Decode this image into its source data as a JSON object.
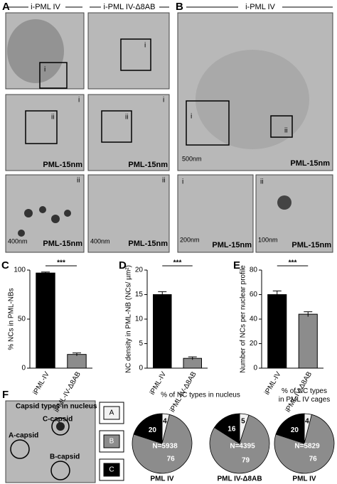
{
  "panel_a": {
    "letter": "A",
    "left_header": "i-PML IV",
    "right_header": "i-PML IV-Δ8AB",
    "inset_i": "i",
    "inset_ii": "ii",
    "stain": "PML-15nm",
    "scale": "400nm"
  },
  "panel_b": {
    "letter": "B",
    "header": "i-PML IV",
    "inset_i": "i",
    "inset_ii": "ii",
    "stain": "PML-15nm",
    "scale_main": "500nm",
    "scale_i": "200nm",
    "scale_ii": "100nm"
  },
  "panel_f": {
    "letter": "F",
    "image_title": "Capsid types in nucleus",
    "a_capsid": "A-capsid",
    "b_capsid": "B-capsid",
    "c_capsid": "C-capsid",
    "legend": [
      "A",
      "B",
      "C"
    ],
    "legend_colors": [
      "#f2f2f2",
      "#8c8c8c",
      "#000000"
    ]
  },
  "chart_data": [
    {
      "type": "bar",
      "panel": "C",
      "ylabel": "% NCs in PML-NBs",
      "categories": [
        "iPML-IV",
        "iPML-IV-Δ8AB"
      ],
      "values": [
        97,
        14
      ],
      "errors": [
        1,
        1.5
      ],
      "colors": [
        "#000000",
        "#8c8c8c"
      ],
      "ylim": [
        0,
        100
      ],
      "yticks": [
        0,
        50,
        100
      ],
      "annotation": "***"
    },
    {
      "type": "bar",
      "panel": "D",
      "ylabel": "NC density in PML-NB (NCs/ µm²)",
      "categories": [
        "iPML-IV",
        "iPML-IV-Δ8AB"
      ],
      "values": [
        15,
        2
      ],
      "errors": [
        0.6,
        0.3
      ],
      "colors": [
        "#000000",
        "#8c8c8c"
      ],
      "ylim": [
        0,
        20
      ],
      "yticks": [
        0,
        5,
        10,
        15,
        20
      ],
      "annotation": "***"
    },
    {
      "type": "bar",
      "panel": "E",
      "ylabel": "Number of NCs per nuclear profile",
      "categories": [
        "iPML-IV",
        "iPML-IV-Δ8AB"
      ],
      "values": [
        60,
        44
      ],
      "errors": [
        3,
        2
      ],
      "colors": [
        "#000000",
        "#8c8c8c"
      ],
      "ylim": [
        0,
        80
      ],
      "yticks": [
        0,
        20,
        40,
        60,
        80
      ],
      "annotation": "***"
    },
    {
      "type": "pie",
      "title": "% of NC types in nucleus",
      "caption": "PML IV",
      "values": [
        4,
        76,
        20
      ],
      "colors": [
        "#f2f2f2",
        "#8c8c8c",
        "#000000"
      ],
      "n_label": "N=5938"
    },
    {
      "type": "pie",
      "caption": "PML IV-Δ8AB",
      "values": [
        5,
        79,
        16
      ],
      "colors": [
        "#f2f2f2",
        "#8c8c8c",
        "#000000"
      ],
      "n_label": "N=4395"
    },
    {
      "type": "pie",
      "title": "% of NC types in PML IV cages",
      "caption": "PML IV",
      "values": [
        4,
        76,
        20
      ],
      "colors": [
        "#f2f2f2",
        "#8c8c8c",
        "#000000"
      ],
      "n_label": "N=5829"
    }
  ]
}
